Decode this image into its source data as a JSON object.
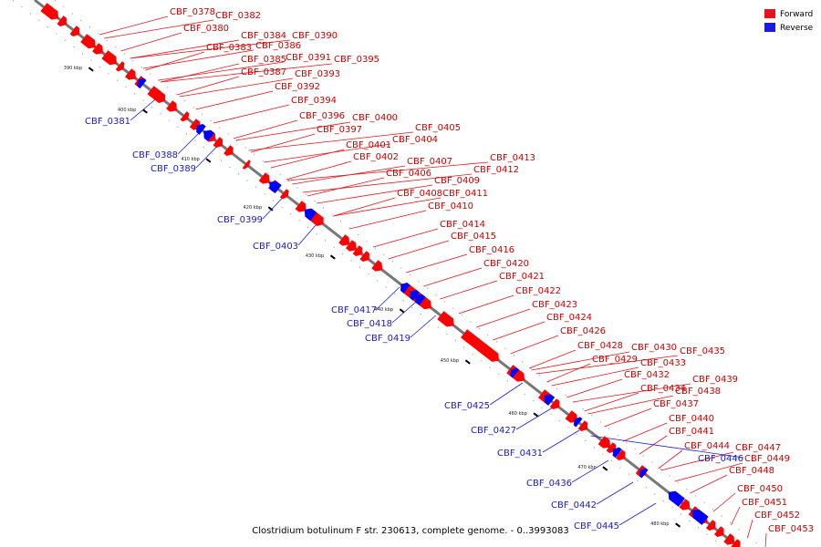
{
  "caption": "Clostridium botulinum F str. 230613, complete genome. - 0..3993083",
  "legend": [
    {
      "label": "Forward",
      "color": "#e8141b"
    },
    {
      "label": "Reverse",
      "color": "#1a1ae6"
    }
  ],
  "colors": {
    "forward": "#ff0000",
    "reverse": "#0000ff",
    "backbone": "#777777"
  },
  "ticks": [
    "390 kbp",
    "400 kbp",
    "410 kbp",
    "420 kbp",
    "430 kbp",
    "440 kbp",
    "450 kbp",
    "460 kbp",
    "470 kbp",
    "480 kbp"
  ],
  "forward_genes": [
    "CBF_0378",
    "CBF_0380",
    "CBF_0382",
    "CBF_0383",
    "CBF_0384",
    "CBF_0386",
    "CBF_0390",
    "CBF_0385",
    "CBF_0391",
    "CBF_0395",
    "CBF_0387",
    "CBF_0393",
    "CBF_0392",
    "CBF_0394",
    "CBF_0396",
    "CBF_0400",
    "CBF_0397",
    "CBF_0405",
    "CBF_0404",
    "CBF_0401",
    "CBF_0402",
    "CBF_0407",
    "CBF_0413",
    "CBF_0406",
    "CBF_0412",
    "CBF_0409",
    "CBF_0408",
    "CBF_0411",
    "CBF_0410",
    "CBF_0414",
    "CBF_0415",
    "CBF_0416",
    "CBF_0420",
    "CBF_0421",
    "CBF_0422",
    "CBF_0423",
    "CBF_0424",
    "CBF_0426",
    "CBF_0428",
    "CBF_0430",
    "CBF_0435",
    "CBF_0429",
    "CBF_0433",
    "CBF_0432",
    "CBF_0439",
    "CBF_0434",
    "CBF_0438",
    "CBF_0437",
    "CBF_0440",
    "CBF_0441",
    "CBF_0444",
    "CBF_0447",
    "CBF_0449",
    "CBF_0448",
    "CBF_0450",
    "CBF_0451",
    "CBF_0452",
    "CBF_0453"
  ],
  "reverse_genes": [
    "CBF_0381",
    "CBF_0388",
    "CBF_0389",
    "CBF_0399",
    "CBF_0403",
    "CBF_0417",
    "CBF_0418",
    "CBF_0419",
    "CBF_0425",
    "CBF_0427",
    "CBF_0431",
    "CBF_0436",
    "CBF_0442",
    "CBF_0445",
    "CBF_0446"
  ]
}
